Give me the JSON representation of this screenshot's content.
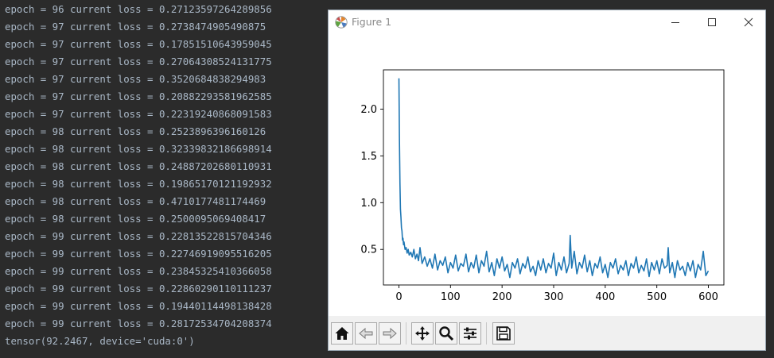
{
  "console": {
    "lines": [
      "epoch = 96 current loss = 0.27123597264289856",
      "epoch = 97 current loss = 0.2738474905490875",
      "epoch = 97 current loss = 0.17851510643959045",
      "epoch = 97 current loss = 0.27064308524131775",
      "epoch = 97 current loss = 0.3520684838294983",
      "epoch = 97 current loss = 0.20882293581962585",
      "epoch = 97 current loss = 0.22319240868091583",
      "epoch = 98 current loss = 0.2523896396160126",
      "epoch = 98 current loss = 0.32339832186698914",
      "epoch = 98 current loss = 0.24887202680110931",
      "epoch = 98 current loss = 0.19865170121192932",
      "epoch = 98 current loss = 0.4710177481174469",
      "epoch = 98 current loss = 0.2500095069408417",
      "epoch = 99 current loss = 0.22813522815704346",
      "epoch = 99 current loss = 0.22746919095516205",
      "epoch = 99 current loss = 0.23845325410366058",
      "epoch = 99 current loss = 0.22860290110111237",
      "epoch = 99 current loss = 0.19440114498138428",
      "epoch = 99 current loss = 0.28172534704208374",
      "tensor(92.2467, device='cuda:0')"
    ]
  },
  "window": {
    "title": "Figure 1",
    "icon": "matplotlib-logo-icon",
    "controls": [
      "minimize-icon",
      "maximize-icon",
      "close-icon"
    ]
  },
  "toolbar": {
    "buttons": [
      "home-icon",
      "back-icon",
      "forward-icon",
      "pan-icon",
      "zoom-icon",
      "configure-subplots-icon",
      "save-icon"
    ]
  },
  "colors": {
    "console_bg": "#2b2b2b",
    "console_text": "#a9b7c6",
    "line": "#1f77b4"
  },
  "chart_data": {
    "type": "line",
    "title": "",
    "xlabel": "",
    "ylabel": "",
    "xlim": [
      -30,
      630
    ],
    "ylim": [
      0.12,
      2.42
    ],
    "xticks": [
      "0",
      "100",
      "200",
      "300",
      "400",
      "500",
      "600"
    ],
    "yticks": [
      "0.5",
      "1.0",
      "1.5",
      "2.0"
    ],
    "xtick_values": [
      0,
      100,
      200,
      300,
      400,
      500,
      600
    ],
    "ytick_values": [
      0.5,
      1.0,
      1.5,
      2.0
    ],
    "grid": false,
    "series": [
      {
        "x": [
          0,
          1,
          2,
          3,
          4,
          5,
          6,
          7,
          8,
          9,
          10,
          12,
          14,
          16,
          18,
          20,
          23,
          26,
          29,
          32,
          35,
          38,
          41,
          45,
          50,
          55,
          60,
          65,
          70,
          75,
          80,
          85,
          90,
          95,
          100,
          105,
          110,
          115,
          120,
          125,
          130,
          135,
          140,
          145,
          150,
          155,
          160,
          165,
          170,
          175,
          180,
          185,
          190,
          195,
          200,
          205,
          210,
          215,
          220,
          225,
          230,
          235,
          240,
          245,
          250,
          255,
          260,
          265,
          270,
          275,
          280,
          285,
          290,
          295,
          300,
          305,
          310,
          315,
          320,
          325,
          330,
          332,
          335,
          340,
          345,
          350,
          355,
          360,
          365,
          370,
          375,
          380,
          385,
          390,
          395,
          400,
          405,
          410,
          415,
          420,
          425,
          430,
          435,
          440,
          445,
          450,
          455,
          460,
          465,
          470,
          475,
          480,
          485,
          490,
          495,
          500,
          505,
          510,
          515,
          520,
          522,
          525,
          530,
          535,
          540,
          545,
          550,
          555,
          560,
          565,
          570,
          575,
          580,
          585,
          590,
          595,
          600
        ],
        "y": [
          2.33,
          1.7,
          1.2,
          0.93,
          0.85,
          0.73,
          0.7,
          0.6,
          0.62,
          0.55,
          0.58,
          0.5,
          0.52,
          0.46,
          0.5,
          0.44,
          0.47,
          0.42,
          0.5,
          0.4,
          0.45,
          0.38,
          0.52,
          0.35,
          0.42,
          0.32,
          0.4,
          0.3,
          0.45,
          0.28,
          0.38,
          0.33,
          0.42,
          0.25,
          0.36,
          0.3,
          0.44,
          0.27,
          0.35,
          0.32,
          0.45,
          0.26,
          0.36,
          0.3,
          0.44,
          0.25,
          0.38,
          0.32,
          0.48,
          0.26,
          0.36,
          0.22,
          0.4,
          0.3,
          0.42,
          0.27,
          0.34,
          0.2,
          0.36,
          0.3,
          0.4,
          0.24,
          0.35,
          0.3,
          0.42,
          0.26,
          0.32,
          0.22,
          0.38,
          0.28,
          0.4,
          0.25,
          0.35,
          0.3,
          0.46,
          0.22,
          0.36,
          0.28,
          0.42,
          0.25,
          0.35,
          0.65,
          0.3,
          0.48,
          0.24,
          0.36,
          0.3,
          0.44,
          0.26,
          0.38,
          0.22,
          0.35,
          0.3,
          0.42,
          0.25,
          0.34,
          0.2,
          0.36,
          0.3,
          0.4,
          0.24,
          0.33,
          0.28,
          0.38,
          0.22,
          0.35,
          0.3,
          0.42,
          0.25,
          0.33,
          0.27,
          0.4,
          0.21,
          0.36,
          0.28,
          0.38,
          0.24,
          0.4,
          0.3,
          0.33,
          0.52,
          0.25,
          0.36,
          0.2,
          0.38,
          0.28,
          0.32,
          0.22,
          0.36,
          0.27,
          0.38,
          0.2,
          0.34,
          0.28,
          0.48,
          0.22,
          0.27
        ]
      }
    ]
  }
}
